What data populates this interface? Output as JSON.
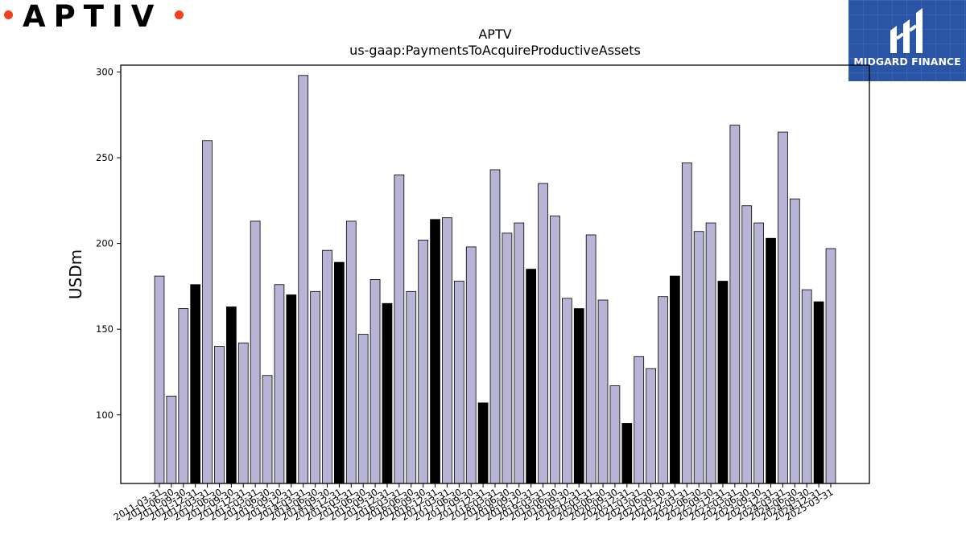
{
  "brand": {
    "name": "APTIV",
    "dot_color": "#f0401c"
  },
  "badge": {
    "name": "MIDGARD FINANCE",
    "bg_color": "#2a55a6"
  },
  "chart_data": {
    "type": "bar",
    "title": "APTV",
    "subtitle": "us-gaap:PaymentsToAcquireProductiveAssets",
    "ylabel": "USDm",
    "xlabel": "",
    "ylim": [
      60,
      304
    ],
    "yticks": [
      100,
      150,
      200,
      250,
      300
    ],
    "grid": false,
    "bar_color": "#b7b4d6",
    "highlight_color": "#000000",
    "categories": [
      "2011-03-31",
      "2011-06-30",
      "2011-09-30",
      "2011-12-31",
      "2012-03-31",
      "2012-06-30",
      "2012-09-30",
      "2012-12-31",
      "2013-03-31",
      "2013-06-30",
      "2013-09-30",
      "2013-12-31",
      "2014-03-31",
      "2014-06-30",
      "2014-09-30",
      "2014-12-31",
      "2015-03-31",
      "2015-06-30",
      "2015-09-30",
      "2015-12-31",
      "2016-03-31",
      "2016-06-30",
      "2016-09-30",
      "2016-12-31",
      "2017-03-31",
      "2017-06-30",
      "2017-09-30",
      "2017-12-31",
      "2018-03-31",
      "2018-06-30",
      "2018-09-30",
      "2018-12-31",
      "2019-03-31",
      "2019-06-30",
      "2019-09-30",
      "2019-12-31",
      "2020-03-31",
      "2020-06-30",
      "2020-09-30",
      "2020-12-31",
      "2021-03-31",
      "2021-06-30",
      "2021-09-30",
      "2021-12-31",
      "2022-03-31",
      "2022-06-30",
      "2022-09-30",
      "2022-12-31",
      "2023-03-31",
      "2023-06-30",
      "2023-09-30",
      "2023-12-31",
      "2024-03-31",
      "2024-06-30",
      "2024-09-30",
      "2024-12-31",
      "2025-03-31"
    ],
    "values": [
      181,
      111,
      162,
      176,
      260,
      140,
      163,
      142,
      213,
      123,
      176,
      170,
      298,
      172,
      196,
      189,
      213,
      147,
      179,
      165,
      240,
      172,
      202,
      214,
      215,
      178,
      198,
      107,
      243,
      206,
      212,
      185,
      235,
      216,
      168,
      162,
      205,
      167,
      117,
      95,
      134,
      127,
      169,
      181,
      247,
      207,
      212,
      178,
      269,
      222,
      212,
      203,
      265,
      226,
      173,
      166,
      197
    ],
    "highlight": [
      false,
      false,
      false,
      true,
      false,
      false,
      true,
      false,
      false,
      false,
      false,
      true,
      false,
      false,
      false,
      true,
      false,
      false,
      false,
      true,
      false,
      false,
      false,
      true,
      false,
      false,
      false,
      true,
      false,
      false,
      false,
      true,
      false,
      false,
      false,
      true,
      false,
      false,
      false,
      true,
      false,
      false,
      false,
      true,
      false,
      false,
      false,
      true,
      false,
      false,
      false,
      true,
      false,
      false,
      false,
      true,
      false
    ]
  }
}
